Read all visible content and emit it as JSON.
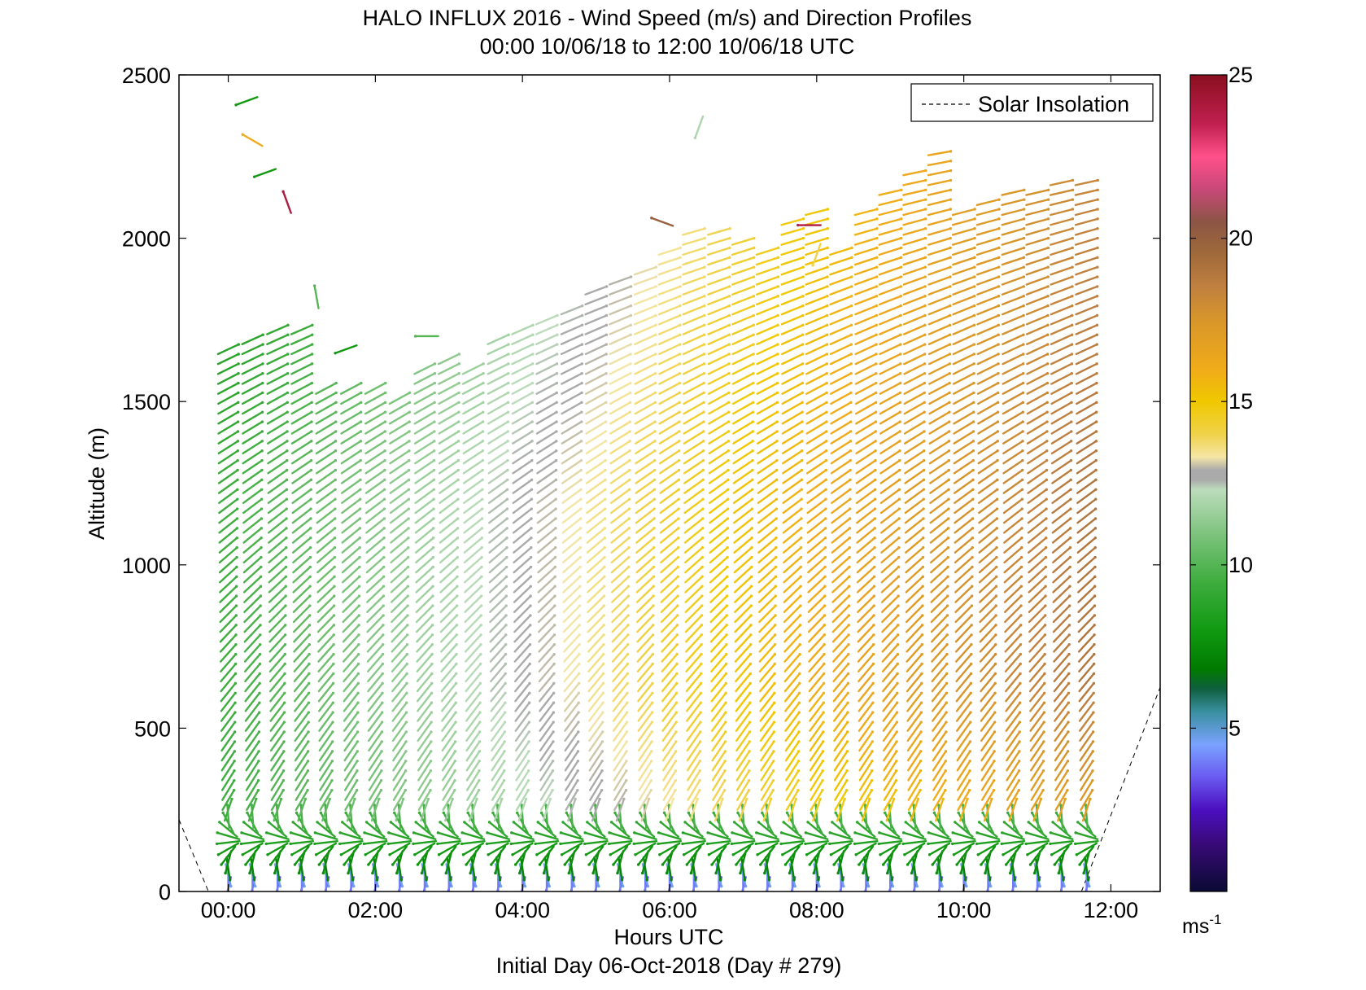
{
  "chart_data": {
    "type": "wind-barb profile (quiver)",
    "title": "HALO INFLUX 2016 - Wind Speed (m/s) and Direction Profiles",
    "subtitle": "00:00 10/06/18 to 12:00 10/06/18  UTC",
    "xlabel": "Hours UTC",
    "xlabel2": "Initial Day 06-Oct-2018 (Day # 279)",
    "ylabel": "Altitude (m)",
    "xlim": [
      -0.67,
      12.67
    ],
    "ylim": [
      0,
      2500
    ],
    "xticks": [
      0,
      2,
      4,
      6,
      8,
      10,
      12
    ],
    "xtick_labels": [
      "00:00",
      "02:00",
      "04:00",
      "06:00",
      "08:00",
      "10:00",
      "12:00"
    ],
    "yticks": [
      0,
      500,
      1000,
      1500,
      2000,
      2500
    ],
    "ytick_labels": [
      "0",
      "500",
      "1000",
      "1500",
      "2000",
      "2500"
    ],
    "legend": {
      "entries": [
        "Solar Insolation"
      ],
      "placement": "top-right",
      "line_style": "dashed"
    },
    "colorbar": {
      "range": [
        0,
        25
      ],
      "ticks": [
        5,
        10,
        15,
        20,
        25
      ],
      "tick_labels": [
        "5",
        "10",
        "15",
        "20",
        "25"
      ],
      "unit_base": "ms",
      "unit_exp": "-1",
      "stops": [
        [
          0,
          "#0a0a33"
        ],
        [
          1.5,
          "#3a0a7a"
        ],
        [
          2.5,
          "#4b0fc0"
        ],
        [
          3.5,
          "#6a5af0"
        ],
        [
          4.5,
          "#7aa2ff"
        ],
        [
          5.5,
          "#3a90a0"
        ],
        [
          6.2,
          "#0f5f3f"
        ],
        [
          6.8,
          "#007a00"
        ],
        [
          8,
          "#119a11"
        ],
        [
          9.5,
          "#3fad3f"
        ],
        [
          11,
          "#80c480"
        ],
        [
          12.3,
          "#bcdcbc"
        ],
        [
          12.6,
          "#aaaaaa"
        ],
        [
          12.9,
          "#aaaaaa"
        ],
        [
          13.3,
          "#f5e6a6"
        ],
        [
          14,
          "#f0d24a"
        ],
        [
          15,
          "#f0c800"
        ],
        [
          16,
          "#f0ab1a"
        ],
        [
          17.5,
          "#d8962a"
        ],
        [
          18.5,
          "#c08040"
        ],
        [
          19.5,
          "#a06a3a"
        ],
        [
          20.5,
          "#8c5545"
        ],
        [
          21.5,
          "#c84878"
        ],
        [
          22.5,
          "#ff508a"
        ],
        [
          23.5,
          "#c02050"
        ],
        [
          25,
          "#8a0f1f"
        ]
      ]
    },
    "solar_insolation": [
      {
        "x": [
          -0.67,
          -0.27
        ],
        "y": [
          220,
          0
        ]
      },
      {
        "x": [
          11.6,
          12.67
        ],
        "y": [
          0,
          625
        ]
      }
    ],
    "profile_times": [
      0.0,
      0.33,
      0.67,
      1.0,
      1.33,
      1.67,
      2.0,
      2.33,
      2.67,
      3.0,
      3.33,
      3.67,
      4.0,
      4.33,
      4.67,
      5.0,
      5.33,
      5.67,
      6.0,
      6.33,
      6.67,
      7.0,
      7.33,
      7.67,
      8.0,
      8.33,
      8.67,
      9.0,
      9.33,
      9.67,
      10.0,
      10.33,
      10.67,
      11.0,
      11.33,
      11.67
    ],
    "profile_top_altitude": [
      1680,
      1700,
      1720,
      1740,
      1560,
      1540,
      1560,
      1520,
      1600,
      1640,
      1620,
      1700,
      1720,
      1760,
      1800,
      1840,
      1880,
      1920,
      1980,
      2020,
      2040,
      2000,
      1960,
      2060,
      2100,
      1980,
      2100,
      2160,
      2220,
      2260,
      2080,
      2120,
      2140,
      2160,
      2180,
      2180
    ],
    "isolated_barbs": [
      {
        "t": 0.25,
        "z": 2420,
        "speed": 8,
        "dir_deg": 250
      },
      {
        "t": 0.33,
        "z": 2300,
        "speed": 16,
        "dir_deg": 300
      },
      {
        "t": 0.5,
        "z": 2200,
        "speed": 8,
        "dir_deg": 250
      },
      {
        "t": 0.8,
        "z": 2110,
        "speed": 24,
        "dir_deg": 340
      },
      {
        "t": 1.2,
        "z": 1820,
        "speed": 10,
        "dir_deg": 350
      },
      {
        "t": 1.6,
        "z": 1660,
        "speed": 8,
        "dir_deg": 250
      },
      {
        "t": 2.7,
        "z": 1700,
        "speed": 10,
        "dir_deg": 270
      },
      {
        "t": 6.4,
        "z": 2340,
        "speed": 12,
        "dir_deg": 200
      },
      {
        "t": 5.9,
        "z": 2050,
        "speed": 20,
        "dir_deg": 290
      },
      {
        "t": 7.9,
        "z": 2040,
        "speed": 24,
        "dir_deg": 270
      },
      {
        "t": 8.0,
        "z": 1950,
        "speed": 14,
        "dir_deg": 200
      }
    ]
  }
}
